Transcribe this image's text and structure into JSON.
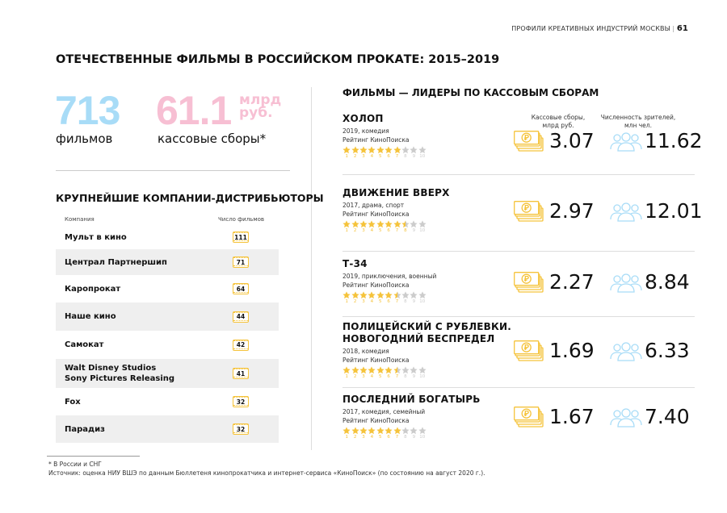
{
  "header": {
    "section": "ПРОФИЛИ КРЕАТИВНЫХ ИНДУСТРИЙ МОСКВЫ",
    "separator": "|",
    "page": "61"
  },
  "title": "ОТЕЧЕСТВЕННЫЕ ФИЛЬМЫ В РОССИЙСКОМ ПРОКАТЕ: 2015–2019",
  "stats": {
    "films_value": "713",
    "films_label": "фильмов",
    "box_value": "61.1",
    "box_unit_1": "млрд",
    "box_unit_2": "руб.",
    "box_label": "кассовые сборы*"
  },
  "colors": {
    "blue": "#a8dcf7",
    "pink": "#f7bfd3",
    "gold": "#f5c33b",
    "row_gray": "#efefef"
  },
  "distributors": {
    "title": "КРУПНЕЙШИЕ КОМПАНИИ-ДИСТРИБЬЮТОРЫ",
    "col_company": "Компания",
    "col_count": "Число фильмов",
    "rows": [
      {
        "name": "Мульт в кино",
        "count": "111"
      },
      {
        "name": "Централ Партнершип",
        "count": "71"
      },
      {
        "name": "Каропрокат",
        "count": "64"
      },
      {
        "name": "Наше кино",
        "count": "44"
      },
      {
        "name": "Самокат",
        "count": "42"
      },
      {
        "name": "Walt Disney Studios\nSony Pictures Releasing",
        "count": "41"
      },
      {
        "name": "Fox",
        "count": "32"
      },
      {
        "name": "Парадиз",
        "count": "32"
      }
    ]
  },
  "films": {
    "title": "ФИЛЬМЫ — ЛИДЕРЫ ПО КАССОВЫМ СБОРАМ",
    "col_money": "Кассовые сборы,\nмлрд руб.",
    "col_viewers": "Численность зрителей,\nмлн чел.",
    "rating_label": "Рейтинг КиноПоиска",
    "star_numbers": [
      "1",
      "2",
      "3",
      "4",
      "5",
      "6",
      "7",
      "8",
      "9",
      "10"
    ],
    "items": [
      {
        "title": "ХОЛОП",
        "meta": "2019, комедия",
        "rating": 6.9,
        "box": "3.07",
        "viewers": "11.62"
      },
      {
        "title": "ДВИЖЕНИЕ ВВЕРХ",
        "meta": "2017, драма, спорт",
        "rating": 7.5,
        "box": "2.97",
        "viewers": "12.01"
      },
      {
        "title": "Т-34",
        "meta": "2019, приключения, военный",
        "rating": 6.5,
        "box": "2.27",
        "viewers": "8.84"
      },
      {
        "title": "ПОЛИЦЕЙСКИЙ С РУБЛЕВКИ.\nНОВОГОДНИЙ БЕСПРЕДЕЛ",
        "meta": "2018, комедия",
        "rating": 6.5,
        "box": "1.69",
        "viewers": "6.33"
      },
      {
        "title": "ПОСЛЕДНИЙ БОГАТЫРЬ",
        "meta": "2017, комедия, семейный",
        "rating": 7.0,
        "box": "1.67",
        "viewers": "7.40"
      }
    ]
  },
  "footnotes": {
    "note": "*  В России и СНГ",
    "source": "Источник: оценка НИУ ВШЭ по данным Бюллетеня кинопрокатчика и интернет-сервиса «КиноПоиск» (по состоянию на август 2020 г.)."
  }
}
